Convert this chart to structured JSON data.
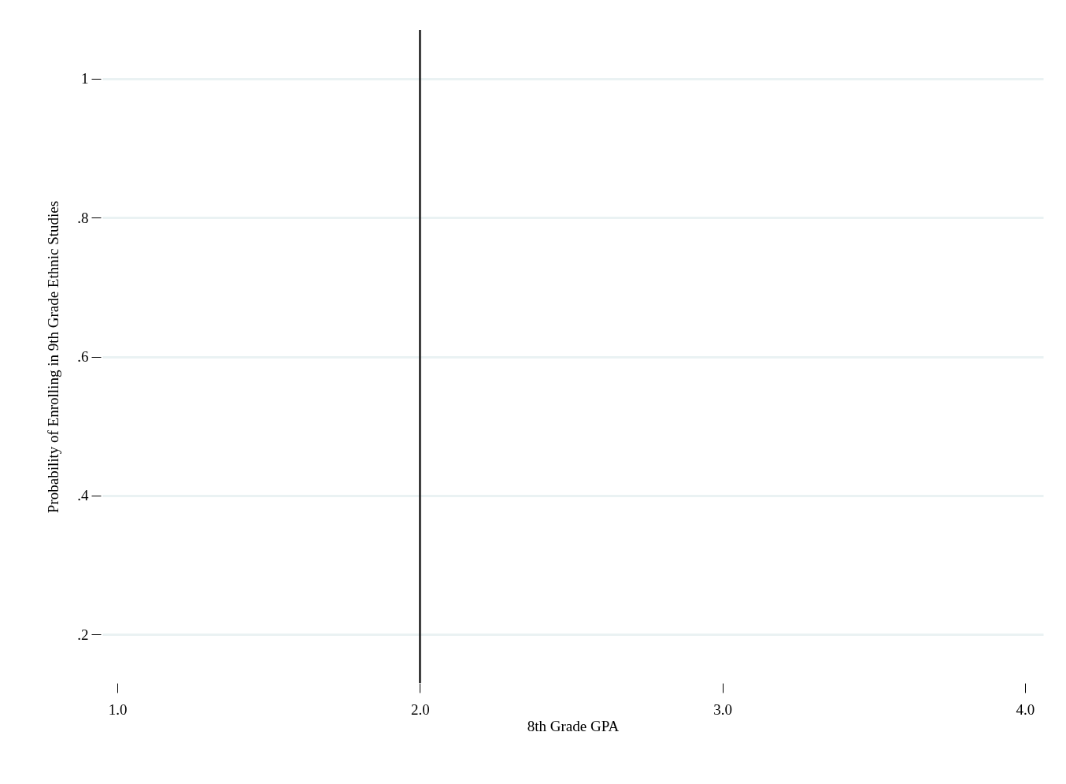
{
  "chart_data": {
    "type": "line",
    "xlabel": "8th Grade GPA",
    "ylabel": "Probability of Enrolling in 9th Grade Ethnic Studies",
    "xlim": [
      0.95,
      4.06
    ],
    "xticks": [
      {
        "value": 1,
        "label": "1.0"
      },
      {
        "value": 2,
        "label": "2.0"
      },
      {
        "value": 3,
        "label": "3.0"
      },
      {
        "value": 4,
        "label": "4.0"
      }
    ],
    "ylim": [
      0.13,
      1.07
    ],
    "yticks": [
      {
        "value": 0.2,
        "label": ".2"
      },
      {
        "value": 0.4,
        "label": ".4"
      },
      {
        "value": 0.6,
        "label": ".6"
      },
      {
        "value": 0.8,
        "label": ".8"
      },
      1
    ],
    "grid": "y",
    "ref_lines": [
      {
        "axis": "x",
        "value": 2,
        "color": "#1a1a1a"
      }
    ]
  }
}
